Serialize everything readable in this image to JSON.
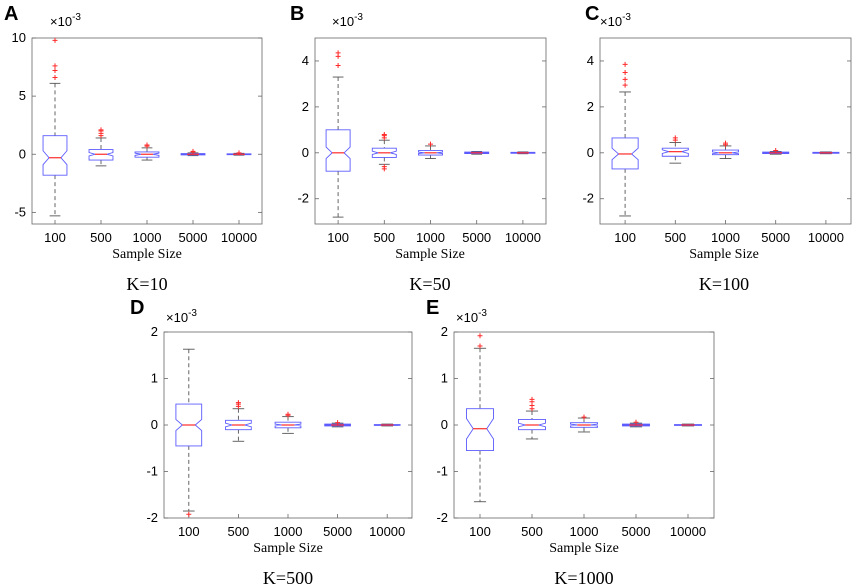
{
  "chart_data": [
    {
      "panel": "A",
      "caption": "K=10",
      "type": "boxplot",
      "xlabel": "Sample Size",
      "multiplier": "×10",
      "exponent": "-3",
      "categories": [
        "100",
        "500",
        "1000",
        "5000",
        "10000"
      ],
      "ylim": [
        -6,
        10
      ],
      "yticks": [
        "-5",
        "0",
        "5",
        "10"
      ],
      "ytick_values": [
        -5,
        0,
        5,
        10
      ],
      "boxes": [
        {
          "whislo": -5.3,
          "q1": -1.8,
          "med": -0.3,
          "q3": 1.6,
          "whishi": 6.1,
          "notch": [
            -0.9,
            0.3
          ],
          "outliers": [
            6.6,
            7.2,
            7.6,
            9.8
          ]
        },
        {
          "whislo": -1.0,
          "q1": -0.5,
          "med": 0.0,
          "q3": 0.4,
          "whishi": 1.4,
          "notch": [
            -0.15,
            0.15
          ],
          "outliers": [
            1.6,
            1.8,
            2.0,
            2.1
          ]
        },
        {
          "whislo": -0.5,
          "q1": -0.25,
          "med": 0.0,
          "q3": 0.2,
          "whishi": 0.55,
          "notch": [
            -0.1,
            0.1
          ],
          "outliers": [
            0.7,
            0.8
          ]
        },
        {
          "whislo": -0.12,
          "q1": -0.06,
          "med": 0.0,
          "q3": 0.06,
          "whishi": 0.12,
          "notch": [
            -0.02,
            0.02
          ],
          "outliers": [
            0.2,
            0.25
          ]
        },
        {
          "whislo": -0.08,
          "q1": -0.04,
          "med": 0.0,
          "q3": 0.04,
          "whishi": 0.08,
          "notch": [
            -0.01,
            0.01
          ],
          "outliers": [
            0.12
          ]
        }
      ]
    },
    {
      "panel": "B",
      "caption": "K=50",
      "type": "boxplot",
      "xlabel": "Sample Size",
      "multiplier": "×10",
      "exponent": "-3",
      "categories": [
        "100",
        "500",
        "1000",
        "5000",
        "10000"
      ],
      "ylim": [
        -3.1,
        5
      ],
      "yticks": [
        "-2",
        "0",
        "2",
        "4"
      ],
      "ytick_values": [
        -2,
        0,
        2,
        4
      ],
      "boxes": [
        {
          "whislo": -2.8,
          "q1": -0.8,
          "med": 0.0,
          "q3": 1.0,
          "whishi": 3.3,
          "notch": [
            -0.25,
            0.25
          ],
          "outliers": [
            3.8,
            4.2,
            4.35
          ]
        },
        {
          "whislo": -0.5,
          "q1": -0.2,
          "med": 0.0,
          "q3": 0.2,
          "whishi": 0.55,
          "notch": [
            -0.07,
            0.07
          ],
          "outliers": [
            -0.7,
            -0.6,
            0.65,
            0.75,
            0.8
          ]
        },
        {
          "whislo": -0.25,
          "q1": -0.1,
          "med": 0.0,
          "q3": 0.1,
          "whishi": 0.3,
          "notch": [
            -0.03,
            0.03
          ],
          "outliers": [
            0.38
          ]
        },
        {
          "whislo": -0.06,
          "q1": -0.03,
          "med": 0.0,
          "q3": 0.03,
          "whishi": 0.06,
          "notch": [
            -0.01,
            0.01
          ],
          "outliers": []
        },
        {
          "whislo": -0.04,
          "q1": -0.02,
          "med": 0.0,
          "q3": 0.02,
          "whishi": 0.04,
          "notch": [
            -0.005,
            0.005
          ],
          "outliers": []
        }
      ]
    },
    {
      "panel": "C",
      "caption": "K=100",
      "type": "boxplot",
      "xlabel": "Sample Size",
      "multiplier": "×10",
      "exponent": "-3",
      "categories": [
        "100",
        "500",
        "1000",
        "5000",
        "10000"
      ],
      "ylim": [
        -3.1,
        5
      ],
      "yticks": [
        "-2",
        "0",
        "2",
        "4"
      ],
      "ytick_values": [
        -2,
        0,
        2,
        4
      ],
      "boxes": [
        {
          "whislo": -2.75,
          "q1": -0.7,
          "med": -0.05,
          "q3": 0.65,
          "whishi": 2.65,
          "notch": [
            -0.3,
            0.2
          ],
          "outliers": [
            2.95,
            3.2,
            3.5,
            3.85
          ]
        },
        {
          "whislo": -0.45,
          "q1": -0.15,
          "med": 0.05,
          "q3": 0.2,
          "whishi": 0.45,
          "notch": [
            -0.03,
            0.13
          ],
          "outliers": [
            0.55,
            0.65
          ]
        },
        {
          "whislo": -0.25,
          "q1": -0.08,
          "med": 0.0,
          "q3": 0.12,
          "whishi": 0.3,
          "notch": [
            -0.04,
            0.04
          ],
          "outliers": [
            0.35,
            0.42
          ]
        },
        {
          "whislo": -0.06,
          "q1": -0.03,
          "med": 0.0,
          "q3": 0.03,
          "whishi": 0.06,
          "notch": [
            -0.01,
            0.01
          ],
          "outliers": [
            0.1
          ]
        },
        {
          "whislo": -0.04,
          "q1": -0.02,
          "med": 0.0,
          "q3": 0.02,
          "whishi": 0.04,
          "notch": [
            -0.005,
            0.005
          ],
          "outliers": []
        }
      ]
    },
    {
      "panel": "D",
      "caption": "K=500",
      "type": "boxplot",
      "xlabel": "Sample Size",
      "multiplier": "×10",
      "exponent": "-3",
      "categories": [
        "100",
        "500",
        "1000",
        "5000",
        "10000"
      ],
      "ylim": [
        -2,
        2
      ],
      "yticks": [
        "-2",
        "-1",
        "0",
        "1",
        "2"
      ],
      "ytick_values": [
        -2,
        -1,
        0,
        1,
        2
      ],
      "boxes": [
        {
          "whislo": -1.85,
          "q1": -0.45,
          "med": 0.0,
          "q3": 0.45,
          "whishi": 1.63,
          "notch": [
            -0.12,
            0.12
          ],
          "outliers": [
            -1.92
          ]
        },
        {
          "whislo": -0.35,
          "q1": -0.1,
          "med": 0.0,
          "q3": 0.1,
          "whishi": 0.35,
          "notch": [
            -0.04,
            0.04
          ],
          "outliers": [
            0.4,
            0.45,
            0.48
          ]
        },
        {
          "whislo": -0.18,
          "q1": -0.06,
          "med": 0.0,
          "q3": 0.06,
          "whishi": 0.18,
          "notch": [
            -0.02,
            0.02
          ],
          "outliers": [
            0.21,
            0.23
          ]
        },
        {
          "whislo": -0.04,
          "q1": -0.02,
          "med": 0.0,
          "q3": 0.02,
          "whishi": 0.04,
          "notch": [
            -0.005,
            0.005
          ],
          "outliers": [
            0.05
          ]
        },
        {
          "whislo": -0.02,
          "q1": -0.01,
          "med": 0.0,
          "q3": 0.01,
          "whishi": 0.02,
          "notch": [
            -0.003,
            0.003
          ],
          "outliers": []
        }
      ]
    },
    {
      "panel": "E",
      "caption": "K=1000",
      "type": "boxplot",
      "xlabel": "Sample Size",
      "multiplier": "×10",
      "exponent": "-3",
      "categories": [
        "100",
        "500",
        "1000",
        "5000",
        "10000"
      ],
      "ylim": [
        -2,
        2
      ],
      "yticks": [
        "-2",
        "-1",
        "0",
        "1",
        "2"
      ],
      "ytick_values": [
        -2,
        -1,
        0,
        1,
        2
      ],
      "boxes": [
        {
          "whislo": -1.65,
          "q1": -0.55,
          "med": -0.08,
          "q3": 0.35,
          "whishi": 1.65,
          "notch": [
            -0.3,
            0.14
          ],
          "outliers": [
            1.7,
            1.92
          ]
        },
        {
          "whislo": -0.3,
          "q1": -0.1,
          "med": 0.0,
          "q3": 0.12,
          "whishi": 0.3,
          "notch": [
            -0.04,
            0.04
          ],
          "outliers": [
            0.35,
            0.42,
            0.5,
            0.55
          ]
        },
        {
          "whislo": -0.15,
          "q1": -0.05,
          "med": 0.0,
          "q3": 0.05,
          "whishi": 0.15,
          "notch": [
            -0.02,
            0.02
          ],
          "outliers": [
            0.17
          ]
        },
        {
          "whislo": -0.04,
          "q1": -0.02,
          "med": 0.0,
          "q3": 0.02,
          "whishi": 0.04,
          "notch": [
            -0.005,
            0.005
          ],
          "outliers": [
            0.06
          ]
        },
        {
          "whislo": -0.02,
          "q1": -0.01,
          "med": 0.0,
          "q3": 0.01,
          "whishi": 0.02,
          "notch": [
            -0.003,
            0.003
          ],
          "outliers": []
        }
      ]
    }
  ]
}
